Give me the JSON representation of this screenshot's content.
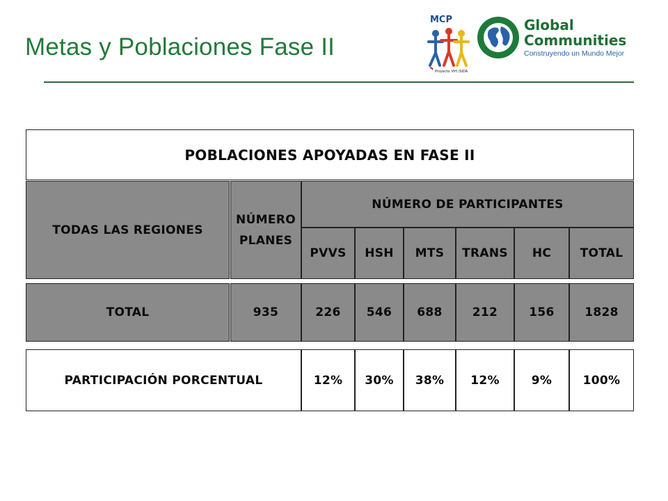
{
  "slide": {
    "title": "Metas y Poblaciones Fase II"
  },
  "logos": {
    "mcp": {
      "name": "MCP",
      "caption": "Proyecto VIH /SIDA"
    },
    "global_communities": {
      "line1": "Global",
      "line2": "Communities",
      "tagline": "Construyendo un Mundo Mejor"
    }
  },
  "table": {
    "caption": "POBLACIONES APOYADAS EN FASE II",
    "header_regions": "TODAS LAS REGIONES",
    "header_planes": "NÚMERO PLANES",
    "header_participants": "NÚMERO DE PARTICIPANTES",
    "columns": [
      "PVVS",
      "HSH",
      "MTS",
      "TRANS",
      "HC",
      "TOTAL"
    ],
    "total_row": {
      "label": "TOTAL",
      "planes": "935",
      "values": [
        "226",
        "546",
        "688",
        "212",
        "156",
        "1828"
      ]
    },
    "percent_row": {
      "label": "PARTICIPACIÓN PORCENTUAL",
      "values": [
        "12%",
        "30%",
        "38%",
        "12%",
        "9%",
        "100%"
      ]
    }
  },
  "colors": {
    "title": "#237a3a",
    "header_fill": "#8a8a8a",
    "tagline": "#2a62a8"
  }
}
